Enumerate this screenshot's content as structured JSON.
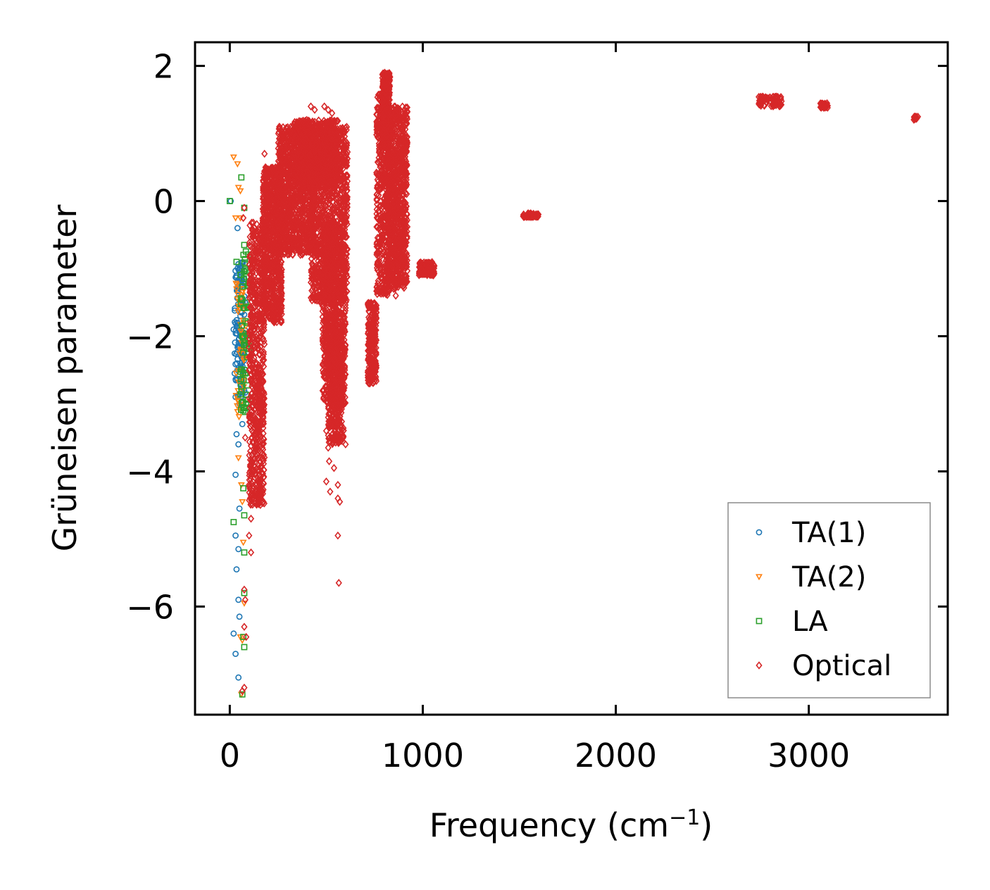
{
  "chart_data": {
    "type": "scatter",
    "title": "",
    "xlabel": "Frequency (cm",
    "xlabel_sup": "−1",
    "xlabel_close": ")",
    "ylabel": "Grüneisen parameter",
    "xlim": [
      -180,
      3720
    ],
    "ylim": [
      -7.6,
      2.35
    ],
    "xticks": [
      0,
      1000,
      2000,
      3000
    ],
    "xtick_labels": [
      "0",
      "1000",
      "2000",
      "3000"
    ],
    "yticks": [
      2,
      0,
      -2,
      -4,
      -6
    ],
    "ytick_labels": [
      "2",
      "0",
      "−2",
      "−4",
      "−6"
    ],
    "grid": false,
    "legend_position": "lower-right",
    "series": [
      {
        "name": "TA(1)",
        "marker": "circle",
        "color": "#1f77b4",
        "points": [
          [
            5,
            0.0
          ],
          [
            40,
            -0.4
          ],
          [
            20,
            -1.9
          ],
          [
            25,
            -2.55
          ],
          [
            30,
            -2.9
          ],
          [
            50,
            -3.0
          ],
          [
            35,
            -3.45
          ],
          [
            45,
            -3.6
          ],
          [
            30,
            -4.05
          ],
          [
            50,
            -4.55
          ],
          [
            30,
            -4.95
          ],
          [
            45,
            -5.15
          ],
          [
            35,
            -5.45
          ],
          [
            45,
            -5.9
          ],
          [
            50,
            -6.15
          ],
          [
            20,
            -6.4
          ],
          [
            30,
            -6.7
          ],
          [
            45,
            -7.05
          ],
          [
            60,
            -1.0
          ],
          [
            70,
            -1.2
          ],
          [
            65,
            -1.5
          ],
          [
            55,
            -1.7
          ],
          [
            40,
            -1.8
          ],
          [
            55,
            -2.0
          ],
          [
            70,
            -2.2
          ],
          [
            60,
            -2.4
          ],
          [
            40,
            -2.5
          ],
          [
            55,
            -2.7
          ],
          [
            75,
            -2.8
          ],
          [
            65,
            -3.3
          ]
        ],
        "clusters": [
          [
            25,
            80,
            -2.9,
            -0.9,
            120
          ]
        ]
      },
      {
        "name": "TA(2)",
        "marker": "triangle-down",
        "color": "#ff7f0e",
        "points": [
          [
            20,
            0.65
          ],
          [
            40,
            0.55
          ],
          [
            45,
            0.2
          ],
          [
            55,
            0.15
          ],
          [
            30,
            -0.25
          ],
          [
            55,
            -0.25
          ],
          [
            35,
            -1.3
          ],
          [
            40,
            -1.45
          ],
          [
            50,
            -1.6
          ],
          [
            60,
            -2.2
          ],
          [
            70,
            -2.6
          ],
          [
            55,
            -3.05
          ],
          [
            60,
            -4.2
          ],
          [
            65,
            -4.45
          ],
          [
            70,
            -5.05
          ],
          [
            55,
            -6.45
          ],
          [
            65,
            -6.5
          ],
          [
            60,
            -7.3
          ],
          [
            75,
            -5.95
          ],
          [
            45,
            -3.8
          ]
        ],
        "clusters": [
          [
            30,
            85,
            -3.2,
            -1.2,
            40
          ]
        ]
      },
      {
        "name": "LA",
        "marker": "square",
        "color": "#2ca02c",
        "points": [
          [
            0,
            0.0
          ],
          [
            60,
            0.35
          ],
          [
            75,
            -0.1
          ],
          [
            75,
            -0.65
          ],
          [
            35,
            -0.9
          ],
          [
            85,
            -1.5
          ],
          [
            80,
            -2.1
          ],
          [
            75,
            -2.5
          ],
          [
            80,
            -2.55
          ],
          [
            70,
            -3.1
          ],
          [
            70,
            -4.25
          ],
          [
            20,
            -4.75
          ],
          [
            75,
            -4.65
          ],
          [
            75,
            -5.2
          ],
          [
            75,
            -5.8
          ],
          [
            70,
            -6.45
          ],
          [
            75,
            -6.6
          ],
          [
            65,
            -7.3
          ]
        ],
        "clusters": [
          [
            55,
            100,
            -3.2,
            -0.7,
            60
          ]
        ]
      },
      {
        "name": "Optical",
        "marker": "diamond",
        "color": "#d62728",
        "points": [
          [
            180,
            0.7
          ],
          [
            185,
            0.5
          ],
          [
            75,
            -0.1
          ],
          [
            70,
            -0.25
          ],
          [
            110,
            -4.7
          ],
          [
            100,
            -4.95
          ],
          [
            110,
            -5.2
          ],
          [
            75,
            -5.75
          ],
          [
            80,
            -5.9
          ],
          [
            75,
            -6.3
          ],
          [
            85,
            -6.45
          ],
          [
            75,
            -7.2
          ],
          [
            65,
            -7.25
          ],
          [
            80,
            -3.5
          ],
          [
            100,
            -4.2
          ],
          [
            500,
            -3.4
          ],
          [
            510,
            -3.65
          ],
          [
            515,
            -3.85
          ],
          [
            500,
            -4.15
          ],
          [
            520,
            -4.3
          ],
          [
            540,
            -3.95
          ],
          [
            560,
            -4.2
          ],
          [
            560,
            -4.4
          ],
          [
            570,
            -4.45
          ],
          [
            560,
            -4.95
          ],
          [
            565,
            -5.65
          ],
          [
            600,
            -3.6
          ],
          [
            500,
            -2.9
          ],
          [
            510,
            -3.2
          ],
          [
            420,
            1.4
          ],
          [
            440,
            1.35
          ],
          [
            490,
            1.4
          ],
          [
            510,
            1.35
          ],
          [
            530,
            1.3
          ],
          [
            860,
            -1.4
          ],
          [
            880,
            -0.1
          ],
          [
            830,
            -1.15
          ]
        ],
        "clusters": [
          [
            100,
            180,
            -4.5,
            -0.3,
            700
          ],
          [
            170,
            270,
            -1.8,
            0.5,
            800
          ],
          [
            250,
            440,
            -0.8,
            1.1,
            1100
          ],
          [
            330,
            560,
            0.2,
            1.2,
            900
          ],
          [
            420,
            610,
            -1.5,
            1.1,
            1100
          ],
          [
            480,
            600,
            -3.0,
            -0.3,
            800
          ],
          [
            510,
            590,
            -3.6,
            -1.8,
            400
          ],
          [
            715,
            760,
            -2.7,
            -1.5,
            250
          ],
          [
            760,
            830,
            -1.4,
            1.6,
            500
          ],
          [
            790,
            830,
            0.8,
            1.9,
            300
          ],
          [
            820,
            920,
            -1.3,
            1.4,
            900
          ],
          [
            980,
            1060,
            -1.1,
            -0.9,
            150
          ],
          [
            1520,
            1600,
            -0.24,
            -0.18,
            50
          ],
          [
            2740,
            2860,
            1.4,
            1.55,
            80
          ],
          [
            3060,
            3100,
            1.38,
            1.45,
            40
          ],
          [
            3540,
            3570,
            1.2,
            1.25,
            12
          ]
        ]
      }
    ]
  }
}
